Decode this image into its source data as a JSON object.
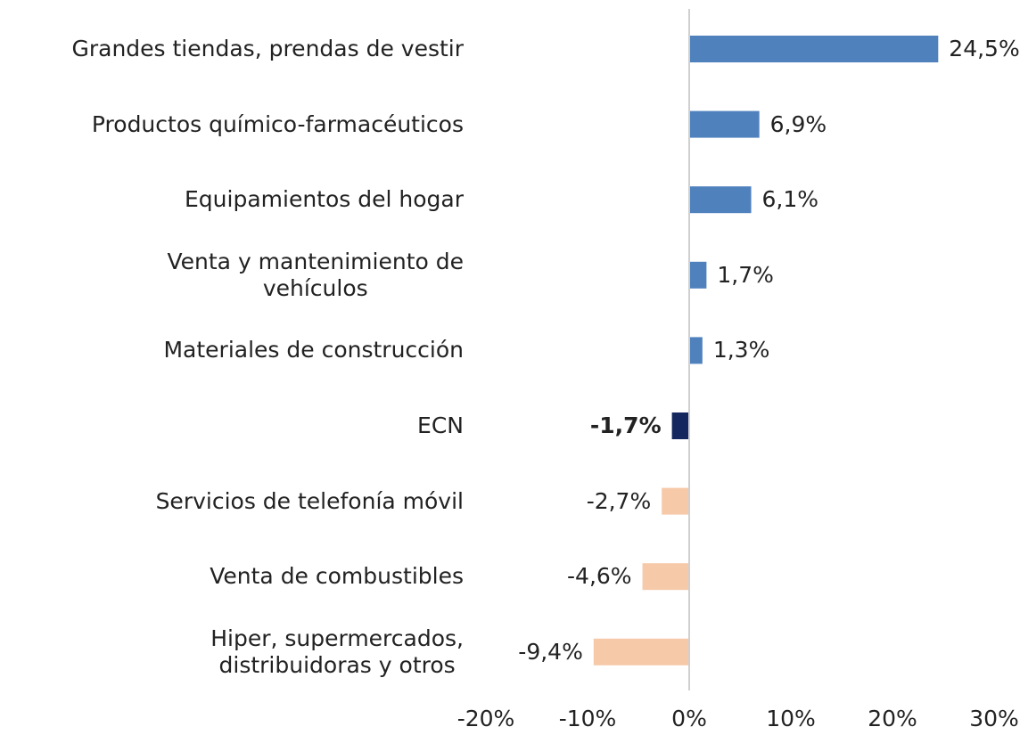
{
  "chart_data": {
    "type": "barh",
    "categories": [
      "Grandes tiendas, prendas de vestir",
      "Productos químico-farmacéuticos",
      "Equipamientos del hogar",
      "Venta y mantenimiento de\nvehículos",
      "Materiales de construcción",
      "ECN",
      "Servicios de telefonía móvil",
      "Venta de combustibles",
      "Hiper, supermercados,\ndistribuidoras y otros"
    ],
    "values": [
      24.5,
      6.9,
      6.1,
      1.7,
      1.3,
      -1.7,
      -2.7,
      -4.6,
      -9.4
    ],
    "value_labels": [
      "24,5%",
      "6,9%",
      "6,1%",
      "1,7%",
      "1,3%",
      "-1,7%",
      "-2,7%",
      "-4,6%",
      "-9,4%"
    ],
    "colors": [
      "#4f81bd",
      "#4f81bd",
      "#4f81bd",
      "#4f81bd",
      "#4f81bd",
      "#14275e",
      "#f6c9a9",
      "#f6c9a9",
      "#f6c9a9"
    ],
    "bold_value_label_index": 5,
    "xlim": [
      -20,
      30
    ],
    "xticks": [
      {
        "value": -20,
        "label": "-20%"
      },
      {
        "value": -10,
        "label": "-10%"
      },
      {
        "value": 0,
        "label": "0%"
      },
      {
        "value": 10,
        "label": "10%"
      },
      {
        "value": 20,
        "label": "20%"
      },
      {
        "value": 30,
        "label": "30%"
      }
    ]
  }
}
